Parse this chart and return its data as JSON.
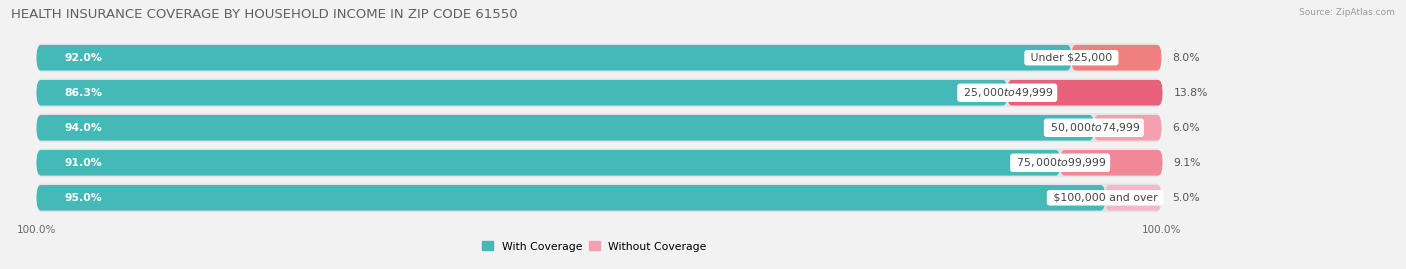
{
  "title": "HEALTH INSURANCE COVERAGE BY HOUSEHOLD INCOME IN ZIP CODE 61550",
  "source": "Source: ZipAtlas.com",
  "categories": [
    "Under $25,000",
    "$25,000 to $49,999",
    "$50,000 to $74,999",
    "$75,000 to $99,999",
    "$100,000 and over"
  ],
  "with_coverage": [
    92.0,
    86.3,
    94.0,
    91.0,
    95.0
  ],
  "without_coverage": [
    8.0,
    13.8,
    6.0,
    9.1,
    5.0
  ],
  "coverage_color": "#45b8b8",
  "no_coverage_color_list": [
    "#f08080",
    "#e8607a",
    "#f4a0b0",
    "#f08898",
    "#f4b8c8"
  ],
  "bg_color": "#f2f2f2",
  "row_bg_color": "#e4e4e4",
  "title_fontsize": 9.5,
  "label_fontsize": 7.8,
  "cat_fontsize": 7.8,
  "tick_fontsize": 7.5,
  "bar_height": 0.72,
  "total_width": 100,
  "x_left_label": "100.0%",
  "x_right_label": "100.0%",
  "legend_labels": [
    "With Coverage",
    "Without Coverage"
  ]
}
